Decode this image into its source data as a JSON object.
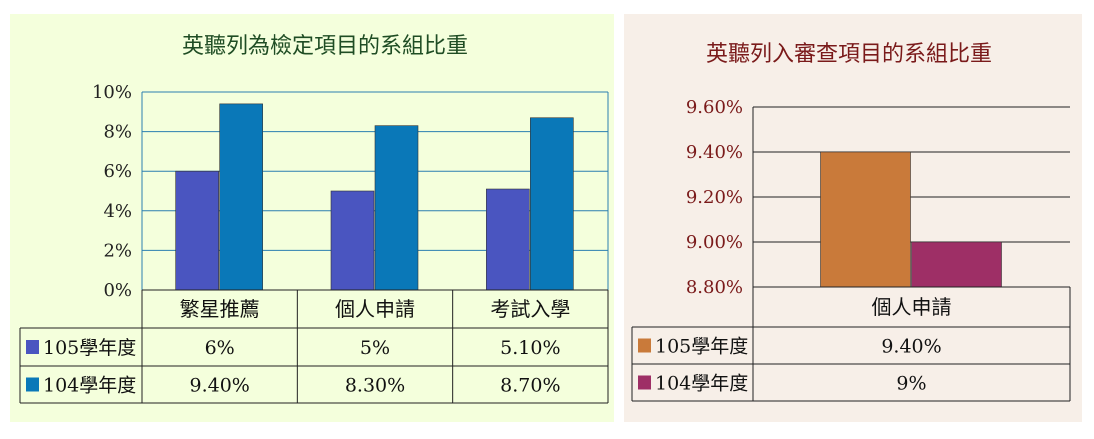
{
  "chart_data": [
    {
      "type": "bar",
      "title": "英聽列為檢定項目的系組比重",
      "categories": [
        "繁星推薦",
        "個人申請",
        "考試入學"
      ],
      "ylim": [
        0,
        10
      ],
      "yticks": [
        "0%",
        "2%",
        "4%",
        "6%",
        "8%",
        "10%"
      ],
      "grid": true,
      "series": [
        {
          "name": "105學年度",
          "values": [
            6.0,
            5.0,
            5.1
          ],
          "labels": [
            "6%",
            "5%",
            "5.10%"
          ],
          "color": "#4a55c0"
        },
        {
          "name": "104學年度",
          "values": [
            9.4,
            8.3,
            8.7
          ],
          "labels": [
            "9.40%",
            "8.30%",
            "8.70%"
          ],
          "color": "#0a78b8"
        }
      ],
      "legend_placement": "data-table-bottom"
    },
    {
      "type": "bar",
      "title": "英聽列入審查項目的系組比重",
      "categories": [
        "個人申請"
      ],
      "ylim": [
        8.8,
        9.6
      ],
      "yticks": [
        "8.80%",
        "9.00%",
        "9.20%",
        "9.40%",
        "9.60%"
      ],
      "grid": true,
      "series": [
        {
          "name": "105學年度",
          "values": [
            9.4
          ],
          "labels": [
            "9.40%"
          ],
          "color": "#c97a3a"
        },
        {
          "name": "104學年度",
          "values": [
            9.0
          ],
          "labels": [
            "9%"
          ],
          "color": "#9e2f66"
        }
      ],
      "legend_placement": "data-table-bottom"
    }
  ]
}
